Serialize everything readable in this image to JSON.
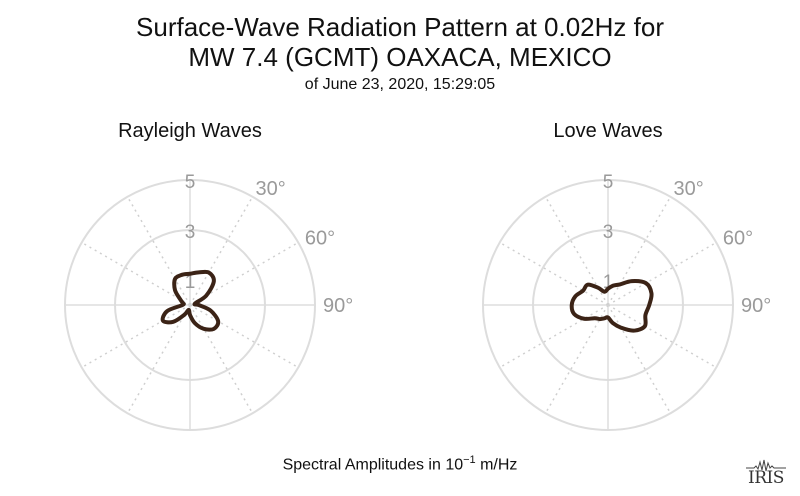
{
  "header": {
    "title_line1": "Surface-Wave Radiation Pattern at 0.02Hz for",
    "title_line2": "MW 7.4 (GCMT) OAXACA, MEXICO",
    "subtitle": "of June 23, 2020, 15:29:05"
  },
  "footer": {
    "label_prefix": "Spectral Amplitudes in 10",
    "label_exponent": "−1",
    "label_suffix": " m/Hz"
  },
  "logo": {
    "text": "IRIS"
  },
  "colors": {
    "pattern": "#3b2316",
    "circle": "#dddddd",
    "spoke": "#cfcfcf",
    "label": "#9a9a9a"
  },
  "chart_data": [
    {
      "type": "polar",
      "title": "Rayleigh Waves",
      "r_max": 5,
      "r_ticks": [
        1,
        3,
        5
      ],
      "angle_labels": [
        "30°",
        "60°",
        "90°"
      ],
      "angle_ticks_deg": [
        30,
        60,
        90
      ],
      "spoke_step_deg": 30,
      "pattern": {
        "theta_deg": [
          0,
          15,
          30,
          45,
          60,
          75,
          90,
          105,
          120,
          135,
          150,
          165,
          180,
          195,
          210,
          225,
          240,
          255,
          270,
          285,
          300,
          315,
          330,
          345
        ],
        "r": [
          1.25,
          1.35,
          1.5,
          1.35,
          0.75,
          0.2,
          0.35,
          0.85,
          1.3,
          1.35,
          1.1,
          0.75,
          0.4,
          0.2,
          0.45,
          0.95,
          1.25,
          0.95,
          0.3,
          0.3,
          0.45,
          0.85,
          1.2,
          1.25
        ]
      }
    },
    {
      "type": "polar",
      "title": "Love Waves",
      "r_max": 5,
      "r_ticks": [
        1,
        3,
        5
      ],
      "angle_labels": [
        "30°",
        "60°",
        "90°"
      ],
      "angle_ticks_deg": [
        30,
        60,
        90
      ],
      "spoke_step_deg": 30,
      "pattern": {
        "theta_deg": [
          0,
          15,
          30,
          45,
          60,
          75,
          90,
          105,
          120,
          135,
          150,
          165,
          180,
          195,
          210,
          225,
          240,
          255,
          270,
          285,
          300,
          315,
          330,
          345
        ],
        "r": [
          0.65,
          0.8,
          0.95,
          1.35,
          1.75,
          1.8,
          1.65,
          1.55,
          1.7,
          1.45,
          1.05,
          0.75,
          0.5,
          0.55,
          0.65,
          0.75,
          1.1,
          1.4,
          1.45,
          1.35,
          1.15,
          1.15,
          0.8,
          0.55
        ]
      }
    }
  ]
}
